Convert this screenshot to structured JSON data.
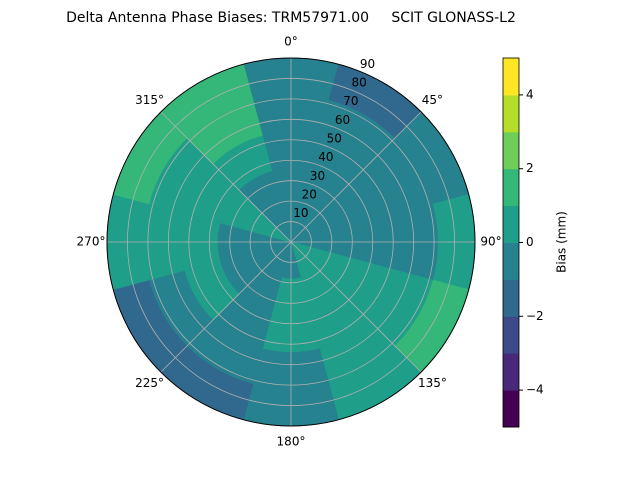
{
  "chart_data": {
    "type": "polar-contour",
    "title": "Delta Antenna Phase Biases: TRM57971.00     SCIT GLONASS-L2",
    "theta": [
      0,
      30,
      60,
      90,
      120,
      150,
      180,
      210,
      240,
      270,
      300,
      330
    ],
    "r_edges": [
      0,
      18,
      36,
      54,
      72,
      90
    ],
    "values": [
      [
        -0.5,
        -0.5,
        -0.5,
        -0.5,
        -0.5
      ],
      [
        -0.5,
        -0.5,
        -0.5,
        -0.8,
        -1.5
      ],
      [
        -0.5,
        -0.5,
        -0.6,
        -0.8,
        -0.8
      ],
      [
        -0.5,
        -0.5,
        -0.5,
        -0.5,
        0.5
      ],
      [
        0.5,
        0.5,
        0.5,
        0.5,
        1.5
      ],
      [
        0.5,
        0.5,
        0.5,
        0.5,
        0.5
      ],
      [
        -0.5,
        0.5,
        0.5,
        -0.5,
        -0.5
      ],
      [
        -0.5,
        -0.5,
        -0.5,
        -0.5,
        -1.5
      ],
      [
        -0.5,
        -0.5,
        0.5,
        -0.5,
        -1.5
      ],
      [
        -0.5,
        -0.5,
        0.5,
        0.5,
        0.5
      ],
      [
        0.5,
        0.5,
        0.5,
        0.5,
        1.5
      ],
      [
        -0.5,
        -0.5,
        0.5,
        1.5,
        1.5
      ]
    ],
    "rlim": [
      0,
      90
    ],
    "rticks": [
      10,
      20,
      30,
      40,
      50,
      60,
      70,
      80,
      90
    ],
    "thetaticks": [
      {
        "value": 0,
        "label": "0°"
      },
      {
        "value": 45,
        "label": "45°"
      },
      {
        "value": 90,
        "label": "90°"
      },
      {
        "value": 135,
        "label": "135°"
      },
      {
        "value": 180,
        "label": "180°"
      },
      {
        "value": 225,
        "label": "225°"
      },
      {
        "value": 270,
        "label": "270°"
      },
      {
        "value": 315,
        "label": "315°"
      }
    ],
    "levels": [
      -5,
      -4,
      -3,
      -2,
      -1,
      0,
      1,
      2,
      3,
      4,
      5
    ],
    "level_colors": [
      "#440154",
      "#482878",
      "#3e4989",
      "#31688e",
      "#26828e",
      "#1f9e89",
      "#35b779",
      "#6ece58",
      "#b5de2b",
      "#fde725"
    ],
    "colorbar_label": "Bias (mm)",
    "colorbar_ticks": [
      {
        "value": -4,
        "label": "−4"
      },
      {
        "value": -2,
        "label": "−2"
      },
      {
        "value": 0,
        "label": "0"
      },
      {
        "value": 2,
        "label": "2"
      },
      {
        "value": 4,
        "label": "4"
      }
    ],
    "grid": true
  }
}
